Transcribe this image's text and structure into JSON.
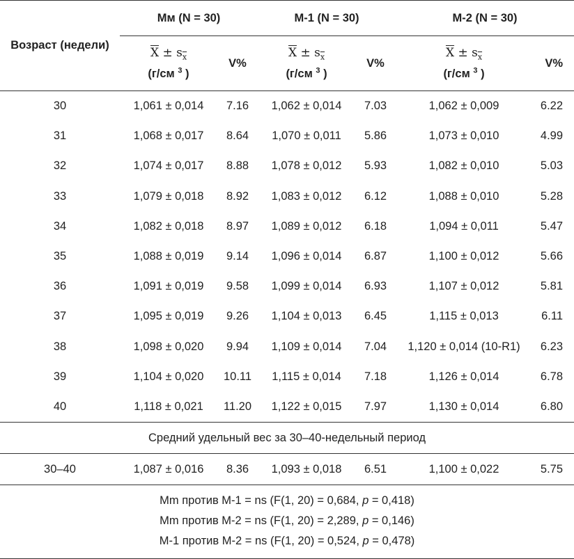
{
  "header": {
    "age_label": "Возраст (недели)",
    "groups": [
      {
        "label": "Мм (N = 30)"
      },
      {
        "label": "М-1 (N = 30)"
      },
      {
        "label": "М-2 (N = 30)"
      }
    ],
    "stat_formula_x": "X",
    "stat_formula_pm": " ± s",
    "stat_formula_sub": "x",
    "stat_unit_open": "(г/см ",
    "stat_unit_sup": "3",
    "stat_unit_close": " )",
    "v_label": "V%"
  },
  "rows": [
    {
      "age": "30",
      "mm": "1,061 ± 0,014",
      "mm_v": "7.16",
      "m1": "1,062 ± 0,014",
      "m1_v": "7.03",
      "m2": "1,062 ± 0,009",
      "m2_v": "6.22"
    },
    {
      "age": "31",
      "mm": "1,068 ± 0,017",
      "mm_v": "8.64",
      "m1": "1,070 ± 0,011",
      "m1_v": "5.86",
      "m2": "1,073 ± 0,010",
      "m2_v": "4.99"
    },
    {
      "age": "32",
      "mm": "1,074 ± 0,017",
      "mm_v": "8.88",
      "m1": "1,078 ± 0,012",
      "m1_v": "5.93",
      "m2": "1,082 ± 0,010",
      "m2_v": "5.03"
    },
    {
      "age": "33",
      "mm": "1,079 ± 0,018",
      "mm_v": "8.92",
      "m1": "1,083 ± 0,012",
      "m1_v": "6.12",
      "m2": "1,088 ± 0,010",
      "m2_v": "5.28"
    },
    {
      "age": "34",
      "mm": "1,082 ± 0,018",
      "mm_v": "8.97",
      "m1": "1,089 ± 0,012",
      "m1_v": "6.18",
      "m2": "1,094 ± 0,011",
      "m2_v": "5.47"
    },
    {
      "age": "35",
      "mm": "1,088 ± 0,019",
      "mm_v": "9.14",
      "m1": "1,096 ± 0,014",
      "m1_v": "6.87",
      "m2": "1,100 ± 0,012",
      "m2_v": "5.66"
    },
    {
      "age": "36",
      "mm": "1,091 ± 0,019",
      "mm_v": "9.58",
      "m1": "1,099 ± 0,014",
      "m1_v": "6.93",
      "m2": "1,107 ± 0,012",
      "m2_v": "5.81"
    },
    {
      "age": "37",
      "mm": "1,095 ± 0,019",
      "mm_v": "9.26",
      "m1": "1,104 ± 0,013",
      "m1_v": "6.45",
      "m2": "1,115 ± 0,013",
      "m2_v": "6.11"
    },
    {
      "age": "38",
      "mm": "1,098 ± 0,020",
      "mm_v": "9.94",
      "m1": "1,109 ± 0,014",
      "m1_v": "7.04",
      "m2": "1,120 ± 0,014 (10-R1)",
      "m2_v": "6.23"
    },
    {
      "age": "39",
      "mm": "1,104 ± 0,020",
      "mm_v": "10.11",
      "m1": "1,115 ± 0,014",
      "m1_v": "7.18",
      "m2": "1,126 ± 0,014",
      "m2_v": "6.78"
    },
    {
      "age": "40",
      "mm": "1,118 ± 0,021",
      "mm_v": "11.20",
      "m1": "1,122 ± 0,015",
      "m1_v": "7.97",
      "m2": "1,130 ± 0,014",
      "m2_v": "6.80"
    }
  ],
  "mean_label": "Средний удельный вес за 30–40-недельный период",
  "mean_row": {
    "age": "30–40",
    "mm": "1,087 ± 0,016",
    "mm_v": "8.36",
    "m1": "1,093 ± 0,018",
    "m1_v": "6.51",
    "m2": "1,100 ± 0,022",
    "m2_v": "5.75"
  },
  "notes": [
    {
      "pre": "Mm против М-1 = ns (F(1, 20) = 0,684, ",
      "p": "p",
      "post": " = 0,418)"
    },
    {
      "pre": "Mm против М-2 = ns (F(1, 20) = 2,289, ",
      "p": "p",
      "post": " = 0,146)"
    },
    {
      "pre": "М-1 против М-2 = ns (F(1, 20) = 0,524, ",
      "p": "p",
      "post": " = 0,478)"
    }
  ]
}
